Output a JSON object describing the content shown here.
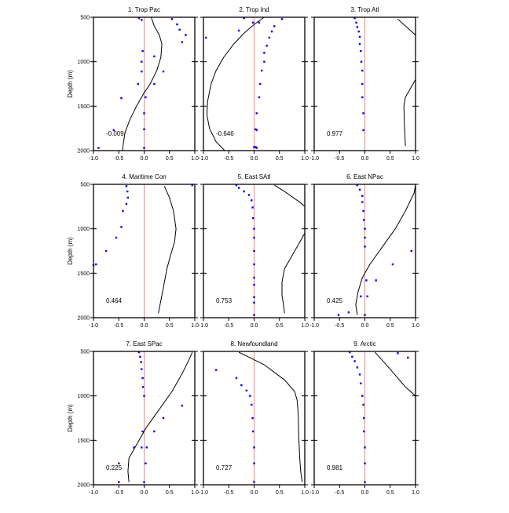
{
  "figure": {
    "ylabel": "Depth (m)",
    "y_ticks": [
      500,
      1000,
      1500,
      2000
    ],
    "x_ticks": [
      -1.0,
      -0.5,
      0.0,
      0.5,
      1.0
    ],
    "x_tick_labels": [
      "-1.0",
      "-0.5",
      "0.0",
      "0.5",
      "1.0"
    ],
    "ylim": [
      500,
      2000
    ],
    "xlim": [
      -1.0,
      1.0
    ],
    "colors": {
      "zero_line": "#ff7f7f",
      "points": "#0000ff",
      "curve": "#000000",
      "frame": "#000000"
    }
  },
  "chart_data": [
    {
      "type": "line",
      "title": "1. Trop Pac",
      "annotation": "-0.009",
      "xlim": [
        -1.0,
        1.0
      ],
      "ylim": [
        500,
        2000
      ],
      "ylabel": "Depth (m)",
      "line": {
        "x": [
          0.14,
          0.2,
          0.3,
          0.35,
          0.33,
          0.25,
          0.12,
          0.0,
          -0.15,
          -0.28,
          -0.38,
          -0.43
        ],
        "y": [
          500,
          600,
          700,
          800,
          950,
          1100,
          1250,
          1350,
          1500,
          1650,
          1800,
          2000
        ]
      },
      "points": {
        "x": [
          -0.1,
          -0.05,
          0.55,
          0.65,
          0.7,
          0.82,
          0.75,
          -0.03,
          0.2,
          -0.05,
          0.38,
          -0.05,
          0.2,
          -0.12,
          0.03,
          -0.45,
          0.0,
          -0.6,
          0.0,
          -0.9,
          0.0
        ],
        "y": [
          510,
          530,
          520,
          580,
          640,
          700,
          780,
          880,
          940,
          1000,
          1110,
          1110,
          1250,
          1250,
          1400,
          1410,
          1580,
          1770,
          1760,
          1970,
          1970
        ]
      }
    },
    {
      "type": "line",
      "title": "2. Trop Ind",
      "annotation": "-0.646",
      "xlim": [
        -1.0,
        1.0
      ],
      "ylim": [
        500,
        2000
      ],
      "ylabel": "",
      "line": {
        "x": [
          0.2,
          0.0,
          -0.2,
          -0.4,
          -0.6,
          -0.75,
          -0.85,
          -0.92,
          -0.93,
          -0.88,
          -0.75,
          -0.58
        ],
        "y": [
          500,
          580,
          680,
          800,
          950,
          1100,
          1250,
          1450,
          1600,
          1750,
          1900,
          2000
        ]
      },
      "points": {
        "x": [
          -0.2,
          0.55,
          0.1,
          -0.02,
          0.4,
          -0.3,
          0.35,
          -0.95,
          0.3,
          0.25,
          0.2,
          0.2,
          0.15,
          0.12,
          0.1,
          0.05,
          0.05,
          0.05,
          0.03,
          0.03,
          0.0
        ],
        "y": [
          510,
          520,
          560,
          560,
          600,
          650,
          660,
          730,
          730,
          820,
          900,
          1000,
          1100,
          1250,
          1400,
          1580,
          1770,
          1970,
          1960,
          1760,
          1960
        ]
      }
    },
    {
      "type": "line",
      "title": "3. Trop Atl",
      "annotation": "0.977",
      "xlim": [
        -1.0,
        1.0
      ],
      "ylim": [
        500,
        2000
      ],
      "ylabel": "",
      "line": {
        "x": [
          0.65,
          1.0
        ],
        "y": [
          520,
          700
        ],
        "x2": [
          1.0,
          0.95,
          0.8,
          0.77,
          0.78,
          0.8
        ],
        "y2": [
          1200,
          1250,
          1400,
          1500,
          1700,
          1950
        ]
      },
      "points": {
        "x": [
          -0.2,
          -0.17,
          -0.15,
          -0.12,
          -0.1,
          -0.1,
          -0.08,
          -0.07,
          -0.05,
          -0.05,
          -0.05,
          -0.03,
          -0.03
        ],
        "y": [
          510,
          560,
          610,
          660,
          720,
          800,
          880,
          1000,
          1100,
          1250,
          1400,
          1580,
          1770
        ]
      }
    },
    {
      "type": "line",
      "title": "4. Maritime Con",
      "annotation": "0.464",
      "xlim": [
        -1.0,
        1.0
      ],
      "ylim": [
        500,
        2000
      ],
      "ylabel": "Depth (m)",
      "line": {
        "x": [
          0.4,
          0.5,
          0.58,
          0.63,
          0.6,
          0.52,
          0.45,
          0.4,
          0.35,
          0.28
        ],
        "y": [
          520,
          650,
          800,
          1000,
          1150,
          1300,
          1450,
          1600,
          1750,
          1950
        ]
      },
      "points": {
        "x": [
          -0.35,
          -0.33,
          -0.32,
          -0.35,
          -0.42,
          -0.45,
          -0.55,
          -0.75,
          -0.95,
          -1.0,
          0.95
        ],
        "y": [
          520,
          580,
          650,
          720,
          800,
          980,
          1100,
          1250,
          1400,
          1410,
          510
        ]
      }
    },
    {
      "type": "line",
      "title": "5. East SAtl",
      "annotation": "0.753",
      "xlim": [
        -1.0,
        1.0
      ],
      "ylim": [
        500,
        2000
      ],
      "ylabel": "",
      "line": {
        "x": [
          0.4,
          0.6,
          0.9,
          1.0
        ],
        "y": [
          510,
          580,
          700,
          750
        ],
        "x2": [
          1.0,
          0.9,
          0.75,
          0.6,
          0.55,
          0.55,
          0.58,
          0.6
        ],
        "y2": [
          1050,
          1150,
          1300,
          1450,
          1600,
          1750,
          1850,
          1950
        ]
      },
      "points": {
        "x": [
          -0.35,
          -0.3,
          -0.2,
          -0.1,
          -0.05,
          -0.03,
          -0.02,
          0.0,
          0.0,
          0.0,
          0.0,
          0.0,
          0.0,
          0.0,
          0.0,
          0.0
        ],
        "y": [
          510,
          540,
          580,
          620,
          680,
          760,
          880,
          1000,
          1100,
          1250,
          1400,
          1550,
          1630,
          1770,
          1830,
          1970
        ]
      }
    },
    {
      "type": "line",
      "title": "6. East NPac",
      "annotation": "0.425",
      "xlim": [
        -1.0,
        1.0
      ],
      "ylim": [
        500,
        2000
      ],
      "ylabel": "",
      "line": {
        "x": [
          1.0,
          0.97,
          0.8,
          0.6,
          0.35,
          0.1,
          -0.05,
          -0.13,
          -0.18,
          -0.15
        ],
        "y": [
          510,
          600,
          800,
          1000,
          1200,
          1400,
          1550,
          1700,
          1850,
          1970
        ]
      },
      "points": {
        "x": [
          -0.15,
          -0.1,
          -0.05,
          -0.05,
          -0.03,
          -0.02,
          0.0,
          0.0,
          0.0,
          0.92,
          0.55,
          0.22,
          0.03,
          0.05,
          -0.08,
          -0.32,
          -0.52,
          0.0
        ],
        "y": [
          510,
          560,
          630,
          700,
          800,
          900,
          1000,
          1100,
          1200,
          1250,
          1400,
          1580,
          1580,
          1760,
          1760,
          1940,
          1970,
          1970
        ]
      }
    },
    {
      "type": "line",
      "title": "7. East SPac",
      "annotation": "0.225",
      "xlim": [
        -1.0,
        1.0
      ],
      "ylim": [
        500,
        2000
      ],
      "ylabel": "Depth (m)",
      "line": {
        "x": [
          0.95,
          0.88,
          0.75,
          0.55,
          0.3,
          0.05,
          -0.15,
          -0.3,
          -0.32,
          -0.3
        ],
        "y": [
          510,
          600,
          750,
          950,
          1150,
          1350,
          1550,
          1700,
          1850,
          1970
        ]
      },
      "points": {
        "x": [
          -0.1,
          -0.08,
          -0.06,
          -0.05,
          -0.03,
          -0.02,
          0.0,
          0.75,
          0.38,
          0.2,
          -0.03,
          -0.05,
          0.05,
          -0.2,
          -0.5,
          0.03,
          -0.5,
          0.0
        ],
        "y": [
          510,
          560,
          620,
          700,
          800,
          900,
          1000,
          1110,
          1250,
          1400,
          1400,
          1580,
          1580,
          1580,
          1760,
          1760,
          1970,
          1970
        ]
      }
    },
    {
      "type": "line",
      "title": "8. Newfoundland",
      "annotation": "0.727",
      "xlim": [
        -1.0,
        1.0
      ],
      "ylim": [
        500,
        2000
      ],
      "ylabel": "",
      "line": {
        "x": [
          -0.3,
          0.2,
          0.6,
          0.8,
          0.85,
          0.87,
          0.88,
          0.9,
          0.92,
          0.95
        ],
        "y": [
          510,
          650,
          820,
          950,
          1050,
          1200,
          1450,
          1700,
          1850,
          1970
        ]
      },
      "points": {
        "x": [
          -0.75,
          -0.35,
          -0.25,
          -0.15,
          -0.08,
          -0.05,
          -0.03,
          -0.02,
          0.0,
          0.0,
          0.0
        ],
        "y": [
          710,
          800,
          880,
          940,
          1000,
          1100,
          1250,
          1400,
          1580,
          1760,
          1970
        ]
      }
    },
    {
      "type": "line",
      "title": "9. Arctic",
      "annotation": "0.981",
      "xlim": [
        -1.0,
        1.0
      ],
      "ylim": [
        500,
        2000
      ],
      "ylabel": "",
      "line": {
        "x": [
          0.2,
          0.5,
          0.8,
          1.0
        ],
        "y": [
          510,
          700,
          900,
          1000
        ]
      },
      "points": {
        "x": [
          -0.3,
          -0.25,
          -0.2,
          -0.15,
          -0.1,
          -0.08,
          -0.05,
          -0.03,
          -0.02,
          -0.02,
          0.0,
          0.0,
          0.0,
          0.65,
          0.85
        ],
        "y": [
          510,
          560,
          610,
          680,
          760,
          860,
          1000,
          1100,
          1250,
          1400,
          1580,
          1760,
          1970,
          520,
          570
        ]
      }
    }
  ]
}
